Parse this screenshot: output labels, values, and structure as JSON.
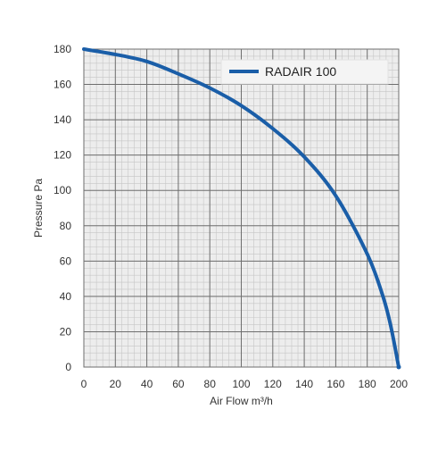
{
  "chart_data": {
    "type": "line",
    "xlabel": "Air Flow m³/h",
    "ylabel": "Pressure Pa",
    "xlim": [
      0,
      200
    ],
    "ylim": [
      0,
      180
    ],
    "x_ticks": [
      "0",
      "20",
      "40",
      "60",
      "80",
      "100",
      "120",
      "140",
      "160",
      "180",
      "200"
    ],
    "y_ticks": [
      "0",
      "20",
      "40",
      "60",
      "80",
      "100",
      "120",
      "140",
      "160",
      "180"
    ],
    "grid": true,
    "legend_position": "top-right",
    "series": [
      {
        "name": "RADAIR 100",
        "color": "#1a5ea8",
        "x": [
          0,
          20,
          40,
          60,
          80,
          100,
          120,
          140,
          160,
          180,
          190,
          195,
          200
        ],
        "y": [
          180,
          177,
          173,
          166,
          158,
          148,
          135,
          119,
          97,
          64,
          40,
          23,
          0
        ]
      }
    ]
  }
}
